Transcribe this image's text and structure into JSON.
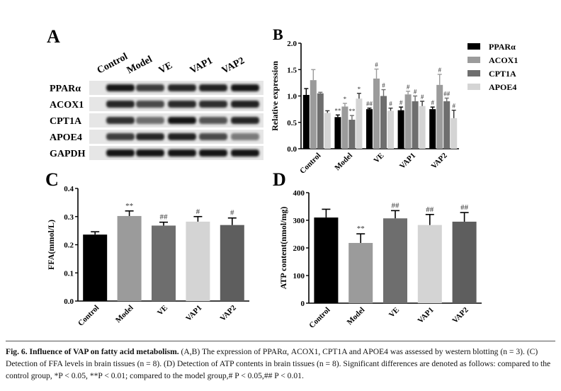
{
  "panel_letters": {
    "a": "A",
    "b": "B",
    "c": "C",
    "d": "D"
  },
  "blot": {
    "lane_labels": [
      "Control",
      "Model",
      "VE",
      "VAP1",
      "VAP2"
    ],
    "row_labels": [
      "PPARα",
      "ACOX1",
      "CPT1A",
      "APOE4",
      "GAPDH"
    ],
    "band_intensity": [
      [
        0.95,
        0.8,
        0.9,
        0.92,
        0.95
      ],
      [
        0.9,
        0.75,
        0.88,
        0.86,
        0.92
      ],
      [
        0.85,
        0.6,
        0.95,
        0.7,
        0.9
      ],
      [
        0.8,
        0.9,
        0.92,
        0.75,
        0.55
      ],
      [
        0.95,
        0.95,
        0.95,
        0.95,
        0.95
      ]
    ]
  },
  "chart_data": [
    {
      "id": "B",
      "type": "bar",
      "categories": [
        "Control",
        "Model",
        "VE",
        "VAP1",
        "VAP2"
      ],
      "ylabel": "Relative expression",
      "ylim": [
        0,
        2.0
      ],
      "yticks": [
        "0.0",
        "0.5",
        "1.0",
        "1.5",
        "2.0"
      ],
      "legend": "right",
      "series": [
        {
          "name": "PPARα",
          "color": "#000000",
          "values": [
            1.02,
            0.6,
            0.75,
            0.73,
            0.75
          ],
          "errors": [
            0.12,
            0.04,
            0.02,
            0.06,
            0.04
          ],
          "marks": [
            "",
            "**",
            "##",
            "#",
            "#"
          ]
        },
        {
          "name": "ACOX1",
          "color": "#9b9b9b",
          "values": [
            1.3,
            0.8,
            1.33,
            1.03,
            1.21
          ],
          "errors": [
            0.2,
            0.06,
            0.18,
            0.06,
            0.2
          ],
          "marks": [
            "",
            "*",
            "#",
            "#",
            "#"
          ]
        },
        {
          "name": "CPT1A",
          "color": "#6e6e6e",
          "values": [
            1.05,
            0.55,
            1.0,
            0.9,
            0.9
          ],
          "errors": [
            0.02,
            0.08,
            0.12,
            0.1,
            0.06
          ],
          "marks": [
            "",
            "**",
            "#",
            "#",
            "##"
          ]
        },
        {
          "name": "APOE4",
          "color": "#d4d4d4",
          "values": [
            0.68,
            0.95,
            0.72,
            0.81,
            0.58
          ],
          "errors": [
            0.04,
            0.1,
            0.05,
            0.09,
            0.15
          ],
          "marks": [
            "",
            "*",
            "#",
            "#",
            "#"
          ]
        }
      ]
    },
    {
      "id": "C",
      "type": "bar",
      "categories": [
        "Control",
        "Model",
        "VE",
        "VAP1",
        "VAP2"
      ],
      "ylabel": "FFA(mmol/L)",
      "ylim": [
        0,
        0.4
      ],
      "yticks": [
        "0.0",
        "0.1",
        "0.2",
        "0.3",
        "0.4"
      ],
      "colors": [
        "#000000",
        "#9b9b9b",
        "#6e6e6e",
        "#d4d4d4",
        "#5e5e5e"
      ],
      "values": [
        0.236,
        0.302,
        0.268,
        0.282,
        0.27
      ],
      "errors": [
        0.01,
        0.018,
        0.012,
        0.018,
        0.025
      ],
      "marks": [
        "",
        "**",
        "##",
        "#",
        "#"
      ]
    },
    {
      "id": "D",
      "type": "bar",
      "categories": [
        "Control",
        "Model",
        "VE",
        "VAP1",
        "VAP2"
      ],
      "ylabel": "ATP content(nmol/mg)",
      "ylim": [
        0,
        400
      ],
      "yticks": [
        "0",
        "100",
        "200",
        "300",
        "400"
      ],
      "colors": [
        "#000000",
        "#9b9b9b",
        "#6e6e6e",
        "#d4d4d4",
        "#5e5e5e"
      ],
      "values": [
        310,
        218,
        307,
        283,
        295
      ],
      "errors": [
        30,
        33,
        28,
        38,
        33
      ],
      "marks": [
        "",
        "**",
        "##",
        "##",
        "##"
      ]
    }
  ],
  "caption": {
    "label": "Fig. 6. Influence of VAP on fatty acid metabolism.",
    "text": " (A,B) The expression of PPARα, ACOX1, CPT1A and APOE4 was assessed by western blotting (n = 3). (C) Detection of FFA levels in brain tissues (n = 8). (D) Detection of ATP contents in brain tissues (n = 8). Significant differences are denoted as follows: compared to the control group, *P < 0.05, **P < 0.01; compared to the model group,# P < 0.05,## P < 0.01."
  }
}
